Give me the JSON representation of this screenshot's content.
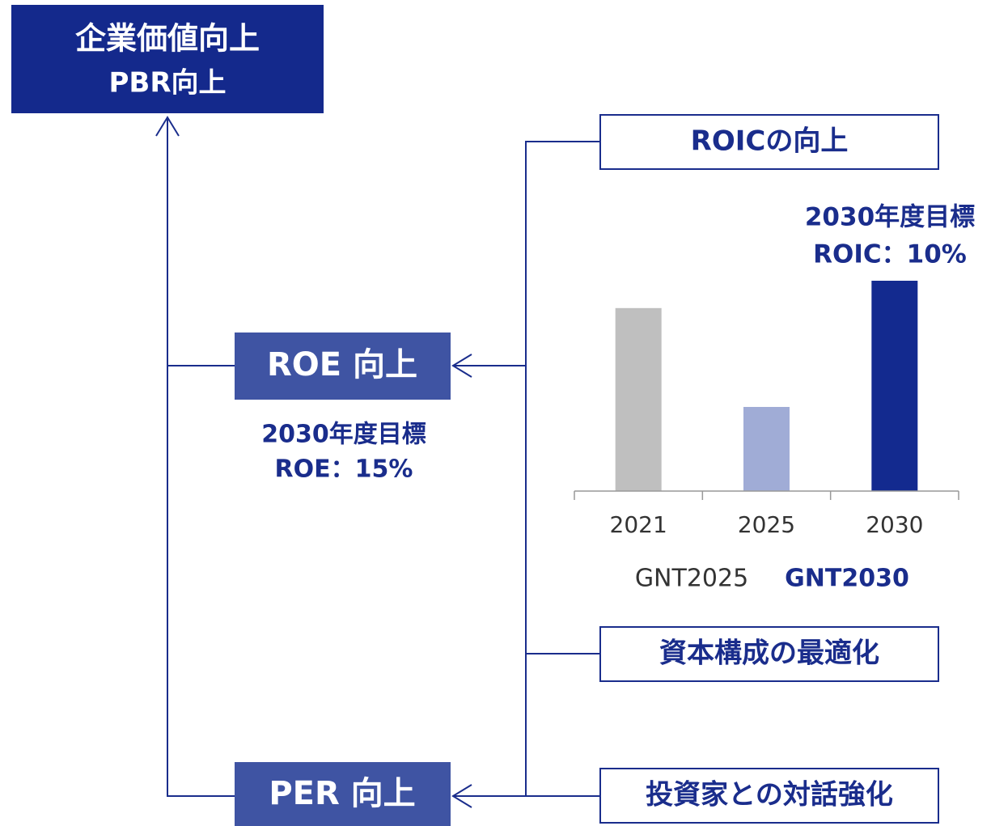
{
  "diagram": {
    "top": {
      "lines": [
        "企業価値向上",
        "PBR向上"
      ]
    },
    "roe": {
      "label": "ROE 向上",
      "target": [
        "2030年度目標",
        "ROE：15%"
      ]
    },
    "per": {
      "label": "PER 向上"
    },
    "drivers": [
      "ROICの向上",
      "資本構成の最適化",
      "投資家との対話強化"
    ]
  },
  "chart_data": {
    "type": "bar",
    "categories": [
      "2021",
      "2025",
      "2030"
    ],
    "values": [
      8.7,
      4.0,
      10
    ],
    "colors": [
      "#bfbfbf",
      "#a0acd6",
      "#132a8f"
    ],
    "ylim": [
      0,
      10
    ],
    "annotations": [
      "2030年度目標",
      "ROIC：10%"
    ],
    "periods": [
      "GNT2025",
      "GNT2030"
    ]
  }
}
